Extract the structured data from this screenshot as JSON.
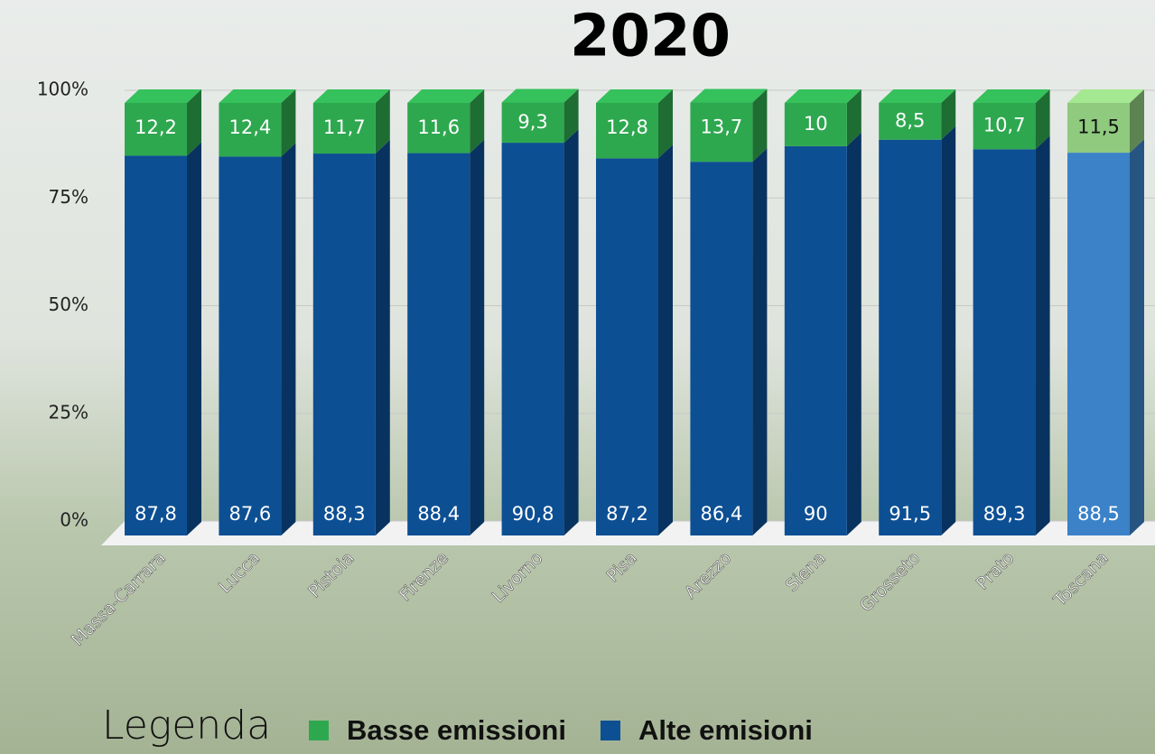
{
  "chart_data": {
    "type": "stacked_bar_3d",
    "title": "2020",
    "categories": [
      "Massa-Carrara",
      "Lucca",
      "Pistoia",
      "Firenze",
      "Livorno",
      "Pisa",
      "Arezzo",
      "Siena",
      "Grosseto",
      "Prato",
      "Toscana"
    ],
    "series": [
      {
        "name": "Alte emisioni",
        "color": "#0d4f93",
        "colors": [
          "#0d4f93",
          "#0d4f93",
          "#0d4f93",
          "#0d4f93",
          "#0d4f93",
          "#0d4f93",
          "#0d4f93",
          "#0d4f93",
          "#0d4f93",
          "#0d4f93",
          "#3b82c8"
        ],
        "values": [
          87.8,
          87.6,
          88.3,
          88.4,
          90.8,
          87.2,
          86.4,
          90,
          91.5,
          89.3,
          88.5
        ],
        "value_labels": [
          "87,8",
          "87,6",
          "88,3",
          "88,4",
          "90,8",
          "87,2",
          "86,4",
          "90",
          "91,5",
          "89,3",
          "88,5"
        ]
      },
      {
        "name": "Basse emissioni",
        "color": "#2ea84f",
        "colors": [
          "#2ea84f",
          "#2ea84f",
          "#2ea84f",
          "#2ea84f",
          "#2ea84f",
          "#2ea84f",
          "#2ea84f",
          "#2ea84f",
          "#2ea84f",
          "#2ea84f",
          "#8fca7e"
        ],
        "values": [
          12.2,
          12.4,
          11.7,
          11.6,
          9.3,
          12.8,
          13.7,
          10,
          8.5,
          10.7,
          11.5
        ],
        "value_labels": [
          "12,2",
          "12,4",
          "11,7",
          "11,6",
          "9,3",
          "12,8",
          "13,7",
          "10",
          "8,5",
          "10,7",
          "11,5"
        ]
      }
    ],
    "ylim": [
      0,
      100
    ],
    "yticks": [
      {
        "value": 0,
        "label": "0%"
      },
      {
        "value": 25,
        "label": "25%"
      },
      {
        "value": 50,
        "label": "50%"
      },
      {
        "value": 75,
        "label": "75%"
      },
      {
        "value": 100,
        "label": "100%"
      }
    ],
    "grid": true,
    "legend_title": "Legenda",
    "legend_position": "bottom"
  }
}
